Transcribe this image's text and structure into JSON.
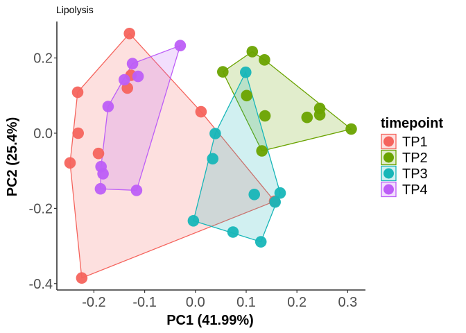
{
  "chart_data": {
    "type": "scatter",
    "title": "Lipolysis",
    "xlabel": "PC1 (41.99%)",
    "ylabel": "PC2 (25.4%)",
    "xlim": [
      -0.273,
      0.335
    ],
    "ylim": [
      -0.417,
      0.297
    ],
    "x_ticks": [
      -0.2,
      -0.1,
      0.0,
      0.1,
      0.2,
      0.3
    ],
    "x_tick_labels": [
      "-0.2",
      "-0.1",
      "0.0",
      "0.1",
      "0.2",
      "0.3"
    ],
    "y_ticks": [
      -0.4,
      -0.2,
      0.0,
      0.2
    ],
    "y_tick_labels": [
      "-0.4",
      "-0.2",
      "0.0",
      "0.2"
    ],
    "grid": false,
    "hulls": true,
    "legend": {
      "title": "timepoint",
      "position": "right"
    },
    "series": [
      {
        "name": "TP1",
        "color": "#F5645D",
        "points": [
          [
            -0.13,
            0.265
          ],
          [
            -0.232,
            0.109
          ],
          [
            -0.127,
            0.154
          ],
          [
            -0.134,
            0.12
          ],
          [
            0.011,
            0.057
          ],
          [
            -0.231,
            0.0
          ],
          [
            -0.191,
            -0.054
          ],
          [
            -0.247,
            -0.079
          ],
          [
            0.156,
            -0.181
          ],
          [
            -0.224,
            -0.385
          ]
        ]
      },
      {
        "name": "TP2",
        "color": "#6AA300",
        "points": [
          [
            0.112,
            0.217
          ],
          [
            0.136,
            0.195
          ],
          [
            0.054,
            0.163
          ],
          [
            0.101,
            0.1
          ],
          [
            0.137,
            0.046
          ],
          [
            0.22,
            0.042
          ],
          [
            0.245,
            0.066
          ],
          [
            0.245,
            0.049
          ],
          [
            0.307,
            0.011
          ],
          [
            0.131,
            -0.047
          ]
        ]
      },
      {
        "name": "TP3",
        "color": "#17B6B8",
        "points": [
          [
            0.099,
            0.162
          ],
          [
            0.039,
            -0.001
          ],
          [
            0.034,
            -0.068
          ],
          [
            0.116,
            -0.163
          ],
          [
            0.167,
            -0.159
          ],
          [
            0.157,
            -0.183
          ],
          [
            -0.004,
            -0.233
          ],
          [
            0.074,
            -0.263
          ],
          [
            0.129,
            -0.289
          ]
        ]
      },
      {
        "name": "TP4",
        "color": "#BD5EF7",
        "points": [
          [
            -0.03,
            0.233
          ],
          [
            -0.124,
            0.185
          ],
          [
            -0.113,
            0.151
          ],
          [
            -0.14,
            0.142
          ],
          [
            -0.172,
            0.071
          ],
          [
            -0.186,
            -0.089
          ],
          [
            -0.182,
            -0.108
          ],
          [
            -0.187,
            -0.148
          ],
          [
            -0.116,
            -0.152
          ]
        ]
      }
    ]
  }
}
